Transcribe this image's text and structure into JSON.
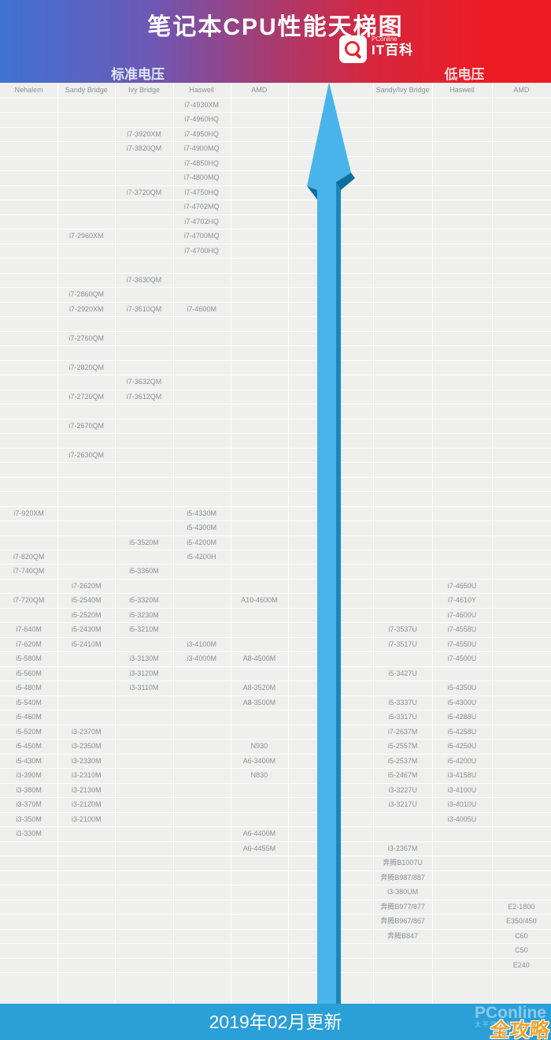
{
  "header": {
    "title": "笔记本CPU性能天梯图",
    "logo": {
      "brand_small": "PConline",
      "brand_large": "IT百科"
    },
    "left_section_label": "标准电压",
    "right_section_label": "低电压"
  },
  "footer": {
    "update_text": "2019年02月更新"
  },
  "watermark": {
    "brand": "PConline",
    "brand_sub": "太平洋电脑网",
    "overlay": "全攻略"
  },
  "colors": {
    "gradient_left": "#3e73d3",
    "gradient_right": "#ec1c24",
    "footer_blue": "#2a9fd8",
    "arrow_light": "#49b4e9",
    "arrow_mid": "#1b86bb",
    "arrow_dark": "#0e6f9f",
    "table_bg": "#efefee",
    "cell_text": "#8b9196"
  },
  "chart_data": {
    "type": "table",
    "title": "笔记本CPU性能天梯图",
    "updated": "2019年02月更新",
    "row_count": 60,
    "legend_note": "rows ordered top=fastest, bottom=slowest",
    "sections": [
      {
        "name": "标准电压",
        "columns": [
          "Nehalem",
          "Sandy Bridge",
          "Ivy Bridge",
          "Haswell",
          "AMD"
        ],
        "entries": [
          [
            1,
            3,
            "i7-4930XM"
          ],
          [
            2,
            3,
            "i7-4960HQ"
          ],
          [
            3,
            2,
            "i7-3920XM"
          ],
          [
            3,
            3,
            "i7-4950HQ"
          ],
          [
            4,
            2,
            "i7-3820QM"
          ],
          [
            4,
            3,
            "i7-4900MQ"
          ],
          [
            5,
            3,
            "i7-4850HQ"
          ],
          [
            6,
            3,
            "i7-4800MQ"
          ],
          [
            7,
            2,
            "i7-3720QM"
          ],
          [
            7,
            3,
            "i7-4750HQ"
          ],
          [
            8,
            3,
            "i7-4702MQ"
          ],
          [
            9,
            3,
            "i7-4702HQ"
          ],
          [
            10,
            1,
            "i7-2960XM"
          ],
          [
            10,
            3,
            "i7-4700MQ"
          ],
          [
            11,
            3,
            "i7-4700HQ"
          ],
          [
            13,
            2,
            "i7-3630QM"
          ],
          [
            14,
            1,
            "i7-2860QM"
          ],
          [
            15,
            1,
            "i7-2920XM"
          ],
          [
            15,
            2,
            "i7-3610QM"
          ],
          [
            15,
            3,
            "i7-4600M"
          ],
          [
            17,
            1,
            "i7-2760QM"
          ],
          [
            19,
            1,
            "i7-2820QM"
          ],
          [
            20,
            2,
            "i7-3632QM"
          ],
          [
            21,
            1,
            "i7-2720QM"
          ],
          [
            21,
            2,
            "i7-3612QM"
          ],
          [
            23,
            1,
            "i7-2670QM"
          ],
          [
            25,
            1,
            "i7-2630QM"
          ],
          [
            29,
            0,
            "i7-920XM"
          ],
          [
            29,
            3,
            "i5-4330M"
          ],
          [
            30,
            3,
            "i5-4300M"
          ],
          [
            31,
            2,
            "i5-3520M"
          ],
          [
            31,
            3,
            "i5-4200M"
          ],
          [
            32,
            0,
            "i7-820QM"
          ],
          [
            32,
            3,
            "i5-4200H"
          ],
          [
            33,
            0,
            "i7-740QM"
          ],
          [
            33,
            2,
            "i5-3360M"
          ],
          [
            34,
            1,
            "i7-2620M"
          ],
          [
            35,
            0,
            "i7-720QM"
          ],
          [
            35,
            1,
            "i5-2540M"
          ],
          [
            35,
            2,
            "i5-3320M"
          ],
          [
            35,
            4,
            "A10-4600M"
          ],
          [
            36,
            1,
            "i5-2520M"
          ],
          [
            36,
            2,
            "i5-3230M"
          ],
          [
            37,
            0,
            "i7-640M"
          ],
          [
            37,
            1,
            "i5-2430M"
          ],
          [
            37,
            2,
            "i5-3210M"
          ],
          [
            38,
            0,
            "i7-620M"
          ],
          [
            38,
            1,
            "i5-2410M"
          ],
          [
            38,
            3,
            "i3-4100M"
          ],
          [
            39,
            0,
            "i5-580M"
          ],
          [
            39,
            2,
            "i3-3130M"
          ],
          [
            39,
            3,
            "i3-4000M"
          ],
          [
            39,
            4,
            "A8-4500M"
          ],
          [
            40,
            0,
            "i5-560M"
          ],
          [
            40,
            2,
            "i3-3120M"
          ],
          [
            41,
            0,
            "i5-480M"
          ],
          [
            41,
            2,
            "i3-3110M"
          ],
          [
            41,
            4,
            "A8-3520M"
          ],
          [
            42,
            0,
            "i5-540M"
          ],
          [
            42,
            4,
            "A8-3500M"
          ],
          [
            43,
            0,
            "i5-460M"
          ],
          [
            44,
            0,
            "i5-520M"
          ],
          [
            44,
            1,
            "i3-2370M"
          ],
          [
            45,
            0,
            "i5-450M"
          ],
          [
            45,
            1,
            "i3-2350M"
          ],
          [
            45,
            4,
            "N930"
          ],
          [
            46,
            0,
            "i5-430M"
          ],
          [
            46,
            1,
            "i3-2330M"
          ],
          [
            46,
            4,
            "A6-3400M"
          ],
          [
            47,
            0,
            "i3-390M"
          ],
          [
            47,
            1,
            "i3-2310M"
          ],
          [
            47,
            4,
            "N830"
          ],
          [
            48,
            0,
            "i3-380M"
          ],
          [
            48,
            1,
            "i3-2130M"
          ],
          [
            49,
            0,
            "i3-370M"
          ],
          [
            49,
            1,
            "i3-2120M"
          ],
          [
            50,
            0,
            "i3-350M"
          ],
          [
            50,
            1,
            "i3-2100M"
          ],
          [
            51,
            0,
            "i3-330M"
          ],
          [
            51,
            4,
            "A6-4400M"
          ],
          [
            52,
            4,
            "A6-4455M"
          ]
        ]
      },
      {
        "name": "低电压",
        "columns": [
          "Sandy/Ivy Bridge",
          "Haswell",
          "AMD"
        ],
        "entries": [
          [
            34,
            1,
            "i7-4650U"
          ],
          [
            35,
            1,
            "i7-4610Y"
          ],
          [
            36,
            1,
            "i7-4600U"
          ],
          [
            37,
            0,
            "i7-3537U"
          ],
          [
            37,
            1,
            "i7-4558U"
          ],
          [
            38,
            0,
            "i7-3517U"
          ],
          [
            38,
            1,
            "i7-4550U"
          ],
          [
            39,
            1,
            "i7-4500U"
          ],
          [
            40,
            0,
            "i5-3427U"
          ],
          [
            41,
            1,
            "i5-4350U"
          ],
          [
            42,
            0,
            "i5-3337U"
          ],
          [
            42,
            1,
            "i5-4300U"
          ],
          [
            43,
            0,
            "i5-3317U"
          ],
          [
            43,
            1,
            "i5-4288U"
          ],
          [
            44,
            0,
            "i7-2637M"
          ],
          [
            44,
            1,
            "i5-4258U"
          ],
          [
            45,
            0,
            "i5-2557M"
          ],
          [
            45,
            1,
            "i5-4250U"
          ],
          [
            46,
            0,
            "i5-2537M"
          ],
          [
            46,
            1,
            "i5-4200U"
          ],
          [
            47,
            0,
            "i5-2467M"
          ],
          [
            47,
            1,
            "i3-4158U"
          ],
          [
            48,
            0,
            "i3-3227U"
          ],
          [
            48,
            1,
            "i3-4100U"
          ],
          [
            49,
            0,
            "i3-3217U"
          ],
          [
            49,
            1,
            "i3-4010U"
          ],
          [
            50,
            1,
            "i3-4005U"
          ],
          [
            52,
            0,
            "i3-2367M"
          ],
          [
            53,
            0,
            "奔腾B1007U"
          ],
          [
            54,
            0,
            "奔腾B987/887"
          ],
          [
            55,
            0,
            "i3-380UM"
          ],
          [
            56,
            0,
            "奔腾B977/877"
          ],
          [
            56,
            2,
            "E2-1800"
          ],
          [
            57,
            0,
            "奔腾B967/867"
          ],
          [
            57,
            2,
            "E350/450"
          ],
          [
            58,
            0,
            "奔腾B847"
          ],
          [
            58,
            2,
            "C60"
          ],
          [
            59,
            2,
            "C50"
          ],
          [
            60,
            2,
            "E240"
          ]
        ]
      }
    ]
  }
}
